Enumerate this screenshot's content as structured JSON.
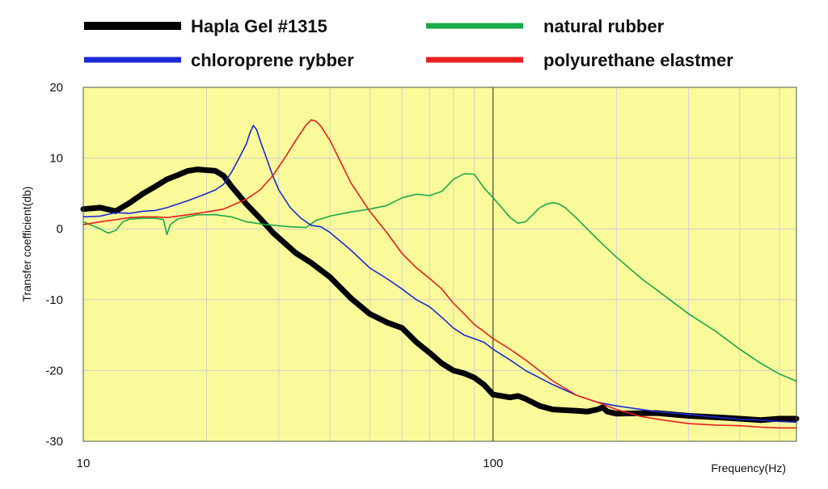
{
  "chart_data": {
    "type": "line",
    "title": "",
    "xlabel": "Frequency(Hz)",
    "ylabel": "Transfer coefficient(db)",
    "x_scale": "log",
    "xlim": [
      10,
      550
    ],
    "ylim": [
      -30,
      20
    ],
    "x_ticks": [
      10,
      100
    ],
    "x_tick_labels": [
      "10",
      "100"
    ],
    "y_ticks": [
      20,
      10,
      0,
      -10,
      -20,
      -30
    ],
    "y_tick_labels": [
      "20",
      "10",
      "0",
      "-10",
      "-20",
      "-30"
    ],
    "grid": true,
    "plot_background": "#fafa9a",
    "legend_position": "top",
    "series": [
      {
        "name": "Hapla Gel #1315",
        "color": "#000000",
        "stroke": "heavy",
        "points": [
          [
            10,
            2.8
          ],
          [
            11,
            3.0
          ],
          [
            12,
            2.5
          ],
          [
            13,
            3.7
          ],
          [
            14,
            5.0
          ],
          [
            15,
            6.0
          ],
          [
            16,
            7.0
          ],
          [
            17,
            7.6
          ],
          [
            18,
            8.2
          ],
          [
            19,
            8.4
          ],
          [
            20,
            8.3
          ],
          [
            21,
            8.2
          ],
          [
            22,
            7.5
          ],
          [
            23,
            6.0
          ],
          [
            25,
            3.5
          ],
          [
            27,
            1.5
          ],
          [
            29,
            -0.5
          ],
          [
            31,
            -2.0
          ],
          [
            33,
            -3.4
          ],
          [
            36,
            -4.8
          ],
          [
            40,
            -6.8
          ],
          [
            45,
            -9.8
          ],
          [
            50,
            -12.0
          ],
          [
            55,
            -13.2
          ],
          [
            60,
            -14.0
          ],
          [
            65,
            -16.0
          ],
          [
            70,
            -17.5
          ],
          [
            75,
            -19.0
          ],
          [
            80,
            -20.0
          ],
          [
            85,
            -20.4
          ],
          [
            90,
            -21.0
          ],
          [
            95,
            -22.0
          ],
          [
            100,
            -23.4
          ],
          [
            105,
            -23.6
          ],
          [
            110,
            -23.8
          ],
          [
            115,
            -23.6
          ],
          [
            120,
            -24.0
          ],
          [
            130,
            -25.0
          ],
          [
            140,
            -25.5
          ],
          [
            150,
            -25.6
          ],
          [
            160,
            -25.7
          ],
          [
            170,
            -25.8
          ],
          [
            180,
            -25.5
          ],
          [
            185,
            -25.2
          ],
          [
            190,
            -25.8
          ],
          [
            200,
            -26.1
          ],
          [
            250,
            -26.0
          ],
          [
            300,
            -26.4
          ],
          [
            350,
            -26.6
          ],
          [
            400,
            -26.8
          ],
          [
            450,
            -27.0
          ],
          [
            500,
            -26.8
          ],
          [
            550,
            -26.8
          ]
        ]
      },
      {
        "name": "natural rubber",
        "color": "#1aaa4a",
        "stroke": "thin",
        "points": [
          [
            10,
            1.0
          ],
          [
            11,
            0.0
          ],
          [
            11.5,
            -0.6
          ],
          [
            12,
            -0.2
          ],
          [
            12.5,
            1.0
          ],
          [
            13,
            1.4
          ],
          [
            14,
            1.5
          ],
          [
            15,
            1.5
          ],
          [
            15.7,
            1.3
          ],
          [
            16,
            -0.8
          ],
          [
            16.3,
            0.6
          ],
          [
            17,
            1.4
          ],
          [
            19,
            2.0
          ],
          [
            21,
            2.0
          ],
          [
            23,
            1.7
          ],
          [
            25,
            1.0
          ],
          [
            28,
            0.6
          ],
          [
            32,
            0.3
          ],
          [
            35,
            0.2
          ],
          [
            37,
            1.2
          ],
          [
            40,
            1.8
          ],
          [
            45,
            2.4
          ],
          [
            50,
            2.8
          ],
          [
            55,
            3.3
          ],
          [
            60,
            4.4
          ],
          [
            65,
            4.9
          ],
          [
            70,
            4.7
          ],
          [
            75,
            5.3
          ],
          [
            80,
            7.0
          ],
          [
            85,
            7.8
          ],
          [
            90,
            7.7
          ],
          [
            95,
            5.8
          ],
          [
            100,
            4.4
          ],
          [
            105,
            3.0
          ],
          [
            110,
            1.6
          ],
          [
            115,
            0.8
          ],
          [
            120,
            1.0
          ],
          [
            125,
            2.0
          ],
          [
            130,
            3.0
          ],
          [
            135,
            3.5
          ],
          [
            140,
            3.7
          ],
          [
            145,
            3.5
          ],
          [
            150,
            3.0
          ],
          [
            160,
            1.5
          ],
          [
            180,
            -1.5
          ],
          [
            200,
            -4.0
          ],
          [
            230,
            -7.0
          ],
          [
            270,
            -10.0
          ],
          [
            300,
            -12.0
          ],
          [
            350,
            -14.5
          ],
          [
            400,
            -17.0
          ],
          [
            450,
            -19.0
          ],
          [
            500,
            -20.5
          ],
          [
            550,
            -21.5
          ]
        ]
      },
      {
        "name": "chloroprene rybber",
        "color": "#1a2ad6",
        "stroke": "thin",
        "points": [
          [
            10,
            1.7
          ],
          [
            11,
            1.8
          ],
          [
            12,
            2.3
          ],
          [
            13,
            2.2
          ],
          [
            14,
            2.5
          ],
          [
            15,
            2.6
          ],
          [
            16,
            3.0
          ],
          [
            17,
            3.5
          ],
          [
            18,
            4.0
          ],
          [
            19,
            4.5
          ],
          [
            20,
            5.0
          ],
          [
            21,
            5.5
          ],
          [
            22,
            6.3
          ],
          [
            23,
            8.0
          ],
          [
            24,
            10.0
          ],
          [
            25,
            12.0
          ],
          [
            25.5,
            13.5
          ],
          [
            26,
            14.6
          ],
          [
            26.5,
            14.0
          ],
          [
            27,
            12.5
          ],
          [
            28,
            10.0
          ],
          [
            29,
            7.5
          ],
          [
            30,
            5.5
          ],
          [
            32,
            3.0
          ],
          [
            34,
            1.5
          ],
          [
            36,
            0.5
          ],
          [
            38,
            0.3
          ],
          [
            40,
            -0.5
          ],
          [
            45,
            -3.0
          ],
          [
            50,
            -5.5
          ],
          [
            55,
            -7.0
          ],
          [
            60,
            -8.5
          ],
          [
            65,
            -10.0
          ],
          [
            70,
            -11.0
          ],
          [
            75,
            -12.5
          ],
          [
            80,
            -14.0
          ],
          [
            85,
            -15.0
          ],
          [
            90,
            -15.5
          ],
          [
            95,
            -16.0
          ],
          [
            100,
            -17.0
          ],
          [
            110,
            -18.5
          ],
          [
            120,
            -20.0
          ],
          [
            140,
            -22.0
          ],
          [
            160,
            -23.5
          ],
          [
            180,
            -24.5
          ],
          [
            200,
            -25.0
          ],
          [
            250,
            -25.8
          ],
          [
            300,
            -26.2
          ],
          [
            350,
            -26.6
          ],
          [
            400,
            -26.9
          ],
          [
            450,
            -27.0
          ],
          [
            500,
            -27.2
          ],
          [
            550,
            -27.3
          ]
        ]
      },
      {
        "name": "polyurethane elastmer",
        "color": "#e81f1f",
        "stroke": "thin",
        "points": [
          [
            10,
            0.6
          ],
          [
            11,
            1.0
          ],
          [
            12,
            1.3
          ],
          [
            13,
            1.6
          ],
          [
            14,
            1.7
          ],
          [
            15,
            1.7
          ],
          [
            16,
            1.6
          ],
          [
            17,
            1.8
          ],
          [
            18,
            2.0
          ],
          [
            20,
            2.4
          ],
          [
            22,
            2.8
          ],
          [
            25,
            4.2
          ],
          [
            27,
            5.5
          ],
          [
            29,
            7.5
          ],
          [
            31,
            10.0
          ],
          [
            33,
            12.5
          ],
          [
            35,
            14.7
          ],
          [
            36,
            15.4
          ],
          [
            37,
            15.2
          ],
          [
            38,
            14.5
          ],
          [
            40,
            12.5
          ],
          [
            42,
            10.0
          ],
          [
            45,
            6.5
          ],
          [
            50,
            2.5
          ],
          [
            55,
            -0.5
          ],
          [
            60,
            -3.5
          ],
          [
            65,
            -5.5
          ],
          [
            70,
            -7.0
          ],
          [
            75,
            -8.5
          ],
          [
            80,
            -10.5
          ],
          [
            85,
            -12.0
          ],
          [
            90,
            -13.5
          ],
          [
            95,
            -14.5
          ],
          [
            100,
            -15.5
          ],
          [
            110,
            -17.0
          ],
          [
            120,
            -18.5
          ],
          [
            140,
            -21.5
          ],
          [
            160,
            -23.5
          ],
          [
            180,
            -24.5
          ],
          [
            200,
            -25.5
          ],
          [
            230,
            -26.5
          ],
          [
            260,
            -27.0
          ],
          [
            300,
            -27.5
          ],
          [
            350,
            -27.7
          ],
          [
            400,
            -27.8
          ],
          [
            450,
            -28.0
          ],
          [
            500,
            -28.1
          ],
          [
            550,
            -28.1
          ]
        ]
      }
    ]
  }
}
